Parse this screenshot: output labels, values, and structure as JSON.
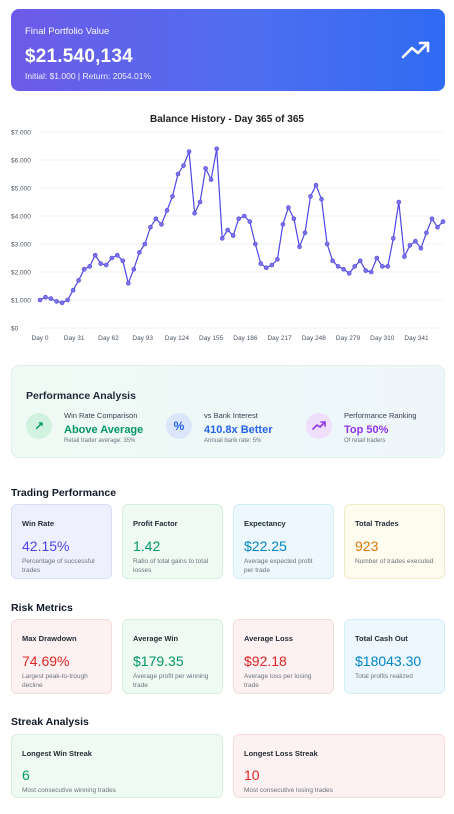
{
  "hero": {
    "label": "Final Portfolio Value",
    "value": "$21.540,134",
    "sub": "Initial: $1.000 | Return: 2054.01%",
    "icon": "trending-up-icon"
  },
  "chart_data": {
    "type": "line",
    "title": "Balance History - Day 365 of 365",
    "xlabel": "",
    "ylabel": "",
    "x_ticks": [
      "Day 0",
      "Day 31",
      "Day 62",
      "Day 93",
      "Day 124",
      "Day 155",
      "Day 186",
      "Day 217",
      "Day 248",
      "Day 279",
      "Day 310",
      "Day 341"
    ],
    "y_ticks": [
      "$0",
      "$1.000",
      "$2.000",
      "$3.000",
      "$4.000",
      "$5.000",
      "$6.000",
      "$7.000"
    ],
    "ylim": [
      0,
      7000
    ],
    "xlim": [
      0,
      365
    ],
    "grid": true,
    "color": "#4f46e5",
    "x": [
      0,
      5,
      10,
      15,
      20,
      25,
      30,
      35,
      40,
      45,
      50,
      55,
      60,
      65,
      70,
      75,
      80,
      85,
      90,
      95,
      100,
      105,
      110,
      115,
      120,
      125,
      130,
      135,
      140,
      145,
      150,
      155,
      160,
      165,
      170,
      175,
      180,
      185,
      190,
      195,
      200,
      205,
      210,
      215,
      220,
      225,
      230,
      235,
      240,
      245,
      250,
      255,
      260,
      265,
      270,
      275,
      280,
      285,
      290,
      295,
      300,
      305,
      310,
      315,
      320,
      325,
      330,
      335,
      340,
      345,
      350,
      355,
      360,
      365
    ],
    "values": [
      1000,
      1100,
      1050,
      950,
      900,
      1000,
      1350,
      1700,
      2100,
      2200,
      2600,
      2300,
      2250,
      2500,
      2600,
      2400,
      1600,
      2100,
      2700,
      3000,
      3600,
      3900,
      3700,
      4200,
      4700,
      5500,
      5800,
      6300,
      4100,
      4500,
      5700,
      5300,
      6400,
      3200,
      3500,
      3300,
      3900,
      4000,
      3800,
      3000,
      2300,
      2150,
      2250,
      2450,
      3700,
      4300,
      3900,
      2900,
      3400,
      4700,
      5100,
      4600,
      3000,
      2400,
      2200,
      2100,
      1950,
      2200,
      2400,
      2050,
      2000,
      2500,
      2200,
      2200,
      3200,
      4500,
      2550,
      2950,
      3100,
      2850,
      3400,
      3900,
      3600,
      3800
    ]
  },
  "performance_analysis": {
    "title": "Performance Analysis",
    "items": [
      {
        "label": "Win Rate Comparison",
        "value": "Above Average",
        "note": "Retail trader average: 35%",
        "icon": "arrow-up-right-icon",
        "glyph": "↗",
        "color": "#059669",
        "bg": "#d1f2de"
      },
      {
        "label": "vs Bank Interest",
        "value": "410.8x Better",
        "note": "Annual bank rate: 5%",
        "icon": "percent-icon",
        "glyph": "%",
        "color": "#2563eb",
        "bg": "#dbe6fb"
      },
      {
        "label": "Performance Ranking",
        "value": "Top 50%",
        "note": "Of retail traders",
        "icon": "trending-up-icon",
        "glyph": "⟋",
        "color": "#9333ea",
        "bg": "#f0dffb"
      }
    ]
  },
  "trading_performance": {
    "title": "Trading Performance",
    "cards": [
      {
        "title": "Win Rate",
        "value": "42.15%",
        "desc": "Percentage of successful trades"
      },
      {
        "title": "Profit Factor",
        "value": "1.42",
        "desc": "Ratio of total gains to total losses"
      },
      {
        "title": "Expectancy",
        "value": "$22.25",
        "desc": "Average expected profit per trade"
      },
      {
        "title": "Total Trades",
        "value": "923",
        "desc": "Number of trades executed"
      }
    ]
  },
  "risk_metrics": {
    "title": "Risk Metrics",
    "cards": [
      {
        "title": "Max Drawdown",
        "value": "74.69%",
        "desc": "Largest peak-to-trough decline"
      },
      {
        "title": "Average Win",
        "value": "$179.35",
        "desc": "Average profit per winning trade"
      },
      {
        "title": "Average Loss",
        "value": "$92.18",
        "desc": "Average loss per losing trade"
      },
      {
        "title": "Total Cash Out",
        "value": "$18043.30",
        "desc": "Total profits realized"
      }
    ]
  },
  "streak_analysis": {
    "title": "Streak Analysis",
    "cards": [
      {
        "title": "Longest Win Streak",
        "value": "6",
        "desc": "Most consecutive winning trades"
      },
      {
        "title": "Longest Loss Streak",
        "value": "10",
        "desc": "Most consecutive losing trades"
      }
    ]
  }
}
